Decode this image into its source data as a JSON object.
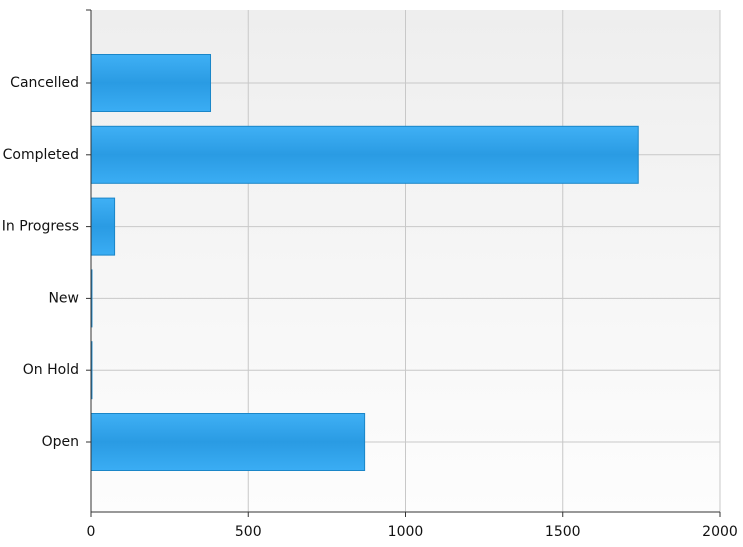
{
  "chart_data": {
    "type": "bar",
    "orientation": "horizontal",
    "categories": [
      "Cancelled",
      "Completed",
      "In Progress",
      "New",
      "On Hold",
      "Open"
    ],
    "values": [
      380,
      1740,
      75,
      3,
      3,
      870
    ],
    "color": "#2ea6f0",
    "xlim": [
      0,
      2000
    ],
    "xticks": [
      0,
      500,
      1000,
      1500,
      2000
    ],
    "grid": true
  }
}
